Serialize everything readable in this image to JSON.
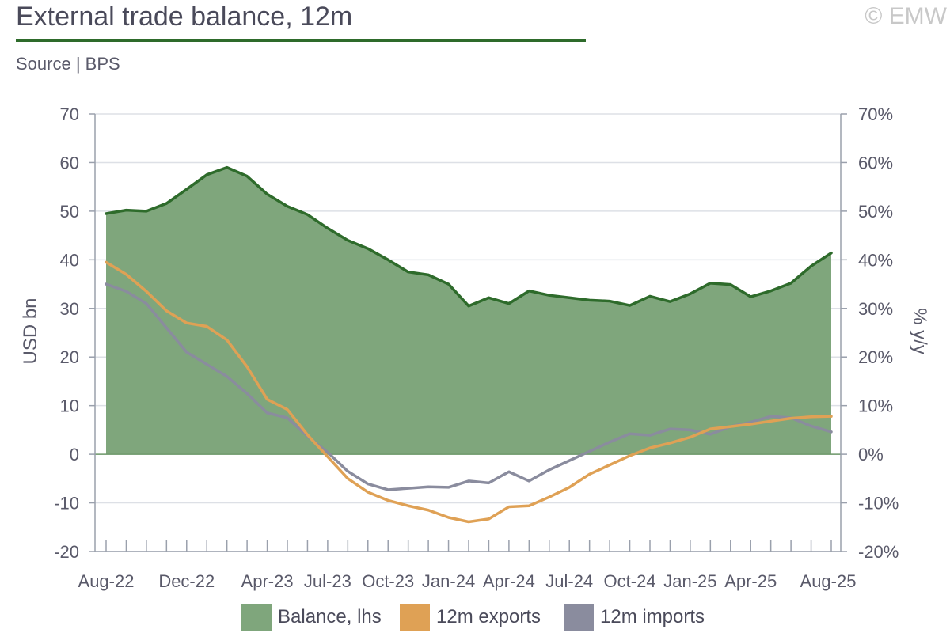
{
  "header": {
    "title": "External trade balance, 12m",
    "copyright": "© EMW",
    "source": "Source | BPS"
  },
  "colors": {
    "balance_fill": "#7fa67c",
    "balance_line": "#2e6b2b",
    "exports": "#dfa155",
    "imports": "#8a8c9e",
    "grid": "#dde0e6",
    "axis": "#9aa0ac",
    "title_rule": "#2e6b2b"
  },
  "chart_data": {
    "type": "area",
    "title": "External trade balance, 12m",
    "ylabel_left": "USD bn",
    "ylabel_right": "% y/y",
    "ylim_left": [
      -20,
      70
    ],
    "ylim_right": [
      -20,
      70
    ],
    "yticks_left": [
      "70",
      "60",
      "50",
      "40",
      "30",
      "20",
      "10",
      "0",
      "-10",
      "-20"
    ],
    "yticks_right": [
      "70%",
      "60%",
      "50%",
      "40%",
      "30%",
      "20%",
      "10%",
      "0%",
      "-10%",
      "-20%"
    ],
    "xtick_labels": [
      "Aug-22",
      "Dec-22",
      "Apr-23",
      "Jul-23",
      "Oct-23",
      "Jan-24",
      "Apr-24",
      "Jul-24",
      "Oct-24",
      "Jan-25",
      "Apr-25",
      "Aug-25"
    ],
    "xtick_label_index": [
      0,
      4,
      8,
      11,
      14,
      17,
      20,
      23,
      26,
      29,
      32,
      36
    ],
    "x": [
      "Aug-22",
      "Sep-22",
      "Oct-22",
      "Nov-22",
      "Dec-22",
      "Jan-23",
      "Feb-23",
      "Mar-23",
      "Apr-23",
      "May-23",
      "Jun-23",
      "Jul-23",
      "Aug-23",
      "Sep-23",
      "Oct-23",
      "Nov-23",
      "Dec-23",
      "Jan-24",
      "Feb-24",
      "Mar-24",
      "Apr-24",
      "May-24",
      "Jun-24",
      "Jul-24",
      "Aug-24",
      "Sep-24",
      "Oct-24",
      "Nov-24",
      "Dec-24",
      "Jan-25",
      "Feb-25",
      "Mar-25",
      "Apr-25",
      "May-25",
      "Jun-25",
      "Jul-25",
      "Aug-25"
    ],
    "series": [
      {
        "name": "Balance, lhs",
        "axis": "left",
        "kind": "area",
        "values": [
          49.5,
          50.2,
          50.0,
          51.6,
          54.5,
          57.5,
          59.0,
          57.2,
          53.5,
          51.0,
          49.3,
          46.5,
          44.0,
          42.3,
          40.0,
          37.5,
          36.9,
          35.0,
          30.5,
          32.2,
          31.0,
          33.6,
          32.7,
          32.2,
          31.7,
          31.5,
          30.6,
          32.5,
          31.4,
          33.0,
          35.2,
          34.9,
          32.4,
          33.6,
          35.2,
          38.7,
          41.4
        ]
      },
      {
        "name": "12m exports",
        "axis": "right",
        "kind": "line",
        "values": [
          39.5,
          37.0,
          33.5,
          29.5,
          27.0,
          26.3,
          23.5,
          18.0,
          11.3,
          9.2,
          4.0,
          -0.5,
          -5.0,
          -7.8,
          -9.5,
          -10.6,
          -11.5,
          -13.0,
          -13.9,
          -13.3,
          -10.8,
          -10.6,
          -8.8,
          -6.8,
          -4.1,
          -2.2,
          -0.3,
          1.3,
          2.3,
          3.5,
          5.2,
          5.7,
          6.2,
          6.8,
          7.4,
          7.7,
          7.8
        ]
      },
      {
        "name": "12m imports",
        "axis": "right",
        "kind": "line",
        "values": [
          35.0,
          33.5,
          31.0,
          26.0,
          21.0,
          18.5,
          16.0,
          12.5,
          8.5,
          7.5,
          3.7,
          0.4,
          -3.5,
          -6.1,
          -7.3,
          -7.0,
          -6.7,
          -6.8,
          -5.5,
          -5.9,
          -3.6,
          -5.5,
          -3.2,
          -1.3,
          0.6,
          2.5,
          4.2,
          3.9,
          5.2,
          5.0,
          4.1,
          5.7,
          6.6,
          7.8,
          7.5,
          5.8,
          4.6
        ]
      }
    ],
    "legend": [
      "Balance, lhs",
      "12m exports",
      "12m imports"
    ],
    "legend_position": "bottom-center",
    "grid": true
  }
}
